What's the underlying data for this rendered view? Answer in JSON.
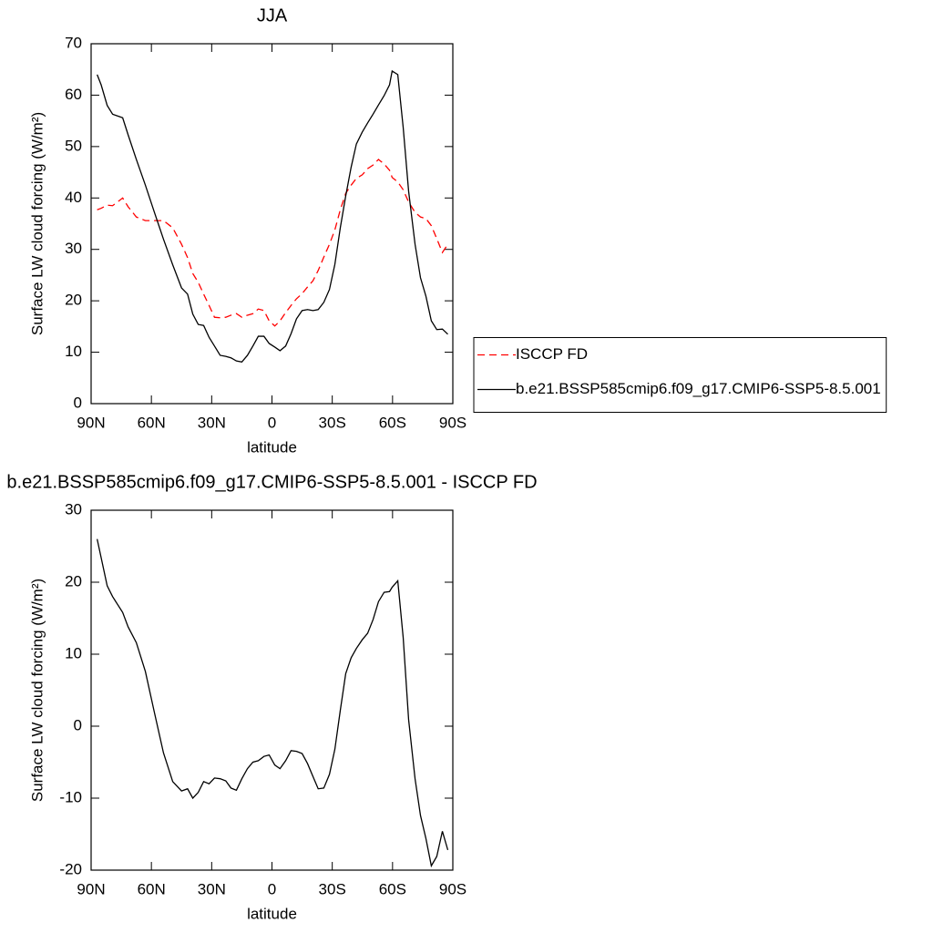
{
  "chart_data": [
    {
      "type": "line",
      "title": "JJA",
      "x_label": "latitude",
      "y_label": "Surface LW cloud forcing (W/m²)",
      "x": [
        87,
        85,
        82,
        79.3,
        74.3,
        71.6,
        67.5,
        63,
        58.5,
        54,
        49.4,
        45,
        42,
        39.4,
        36.7,
        34,
        31.3,
        28.6,
        25.8,
        23,
        20.4,
        17.7,
        15,
        12.2,
        9.5,
        6.8,
        4,
        1.4,
        -1.4,
        -4,
        -6.8,
        -9.5,
        -12.2,
        -15,
        -17.7,
        -20.4,
        -23,
        -25.8,
        -28.6,
        -31.3,
        -34,
        -36.7,
        -39.4,
        -42,
        -44.9,
        -47.6,
        -50.3,
        -53,
        -55.8,
        -58.5,
        -59.8,
        -62.6,
        -65.3,
        -68,
        -71.2,
        -73.9,
        -76.6,
        -79.3,
        -82,
        -84.8,
        -87.5
      ],
      "series": [
        {
          "name": "ISCCP FD",
          "color": "#ff0000",
          "dash": "dashed",
          "values": [
            37.7,
            38,
            38.6,
            38.5,
            40,
            38.3,
            36.3,
            35.6,
            35.6,
            35.6,
            34.2,
            31,
            28.4,
            25.3,
            23.6,
            21.3,
            19.1,
            16.8,
            16.7,
            16.8,
            17.2,
            17.5,
            16.8,
            17.2,
            17.5,
            18.4,
            18.1,
            16.1,
            15.1,
            16.1,
            17.7,
            19.1,
            20.4,
            21.4,
            22.7,
            23.9,
            25.9,
            28.5,
            31,
            33.8,
            37.7,
            40.9,
            42.5,
            43.8,
            44.5,
            45.7,
            46.4,
            47.5,
            46.6,
            45.4,
            44,
            43.1,
            41.6,
            39.2,
            37.2,
            36.3,
            36,
            34.6,
            32.1,
            29.4,
            31
          ]
        },
        {
          "name": "b.e21.BSSP585cmip6.f09_g17.CMIP6-SSP5-8.5.001",
          "color": "#000000",
          "dash": "solid",
          "values": [
            64,
            62,
            58,
            56.3,
            55.6,
            52.3,
            47.5,
            42.5,
            37.2,
            32,
            27,
            22.5,
            21.3,
            17.4,
            15.4,
            15.2,
            12.9,
            11.2,
            9.4,
            9.2,
            8.9,
            8.3,
            8.1,
            9.4,
            11.2,
            13.1,
            13.1,
            11.7,
            11,
            10.3,
            11.2,
            13.6,
            16.5,
            18.1,
            18.3,
            18.1,
            18.3,
            19.7,
            22.2,
            27.1,
            34.2,
            40.4,
            46,
            50.5,
            52.8,
            54.6,
            56.3,
            58.1,
            59.9,
            62,
            64.7,
            64,
            53.7,
            41.3,
            31,
            24.5,
            20.9,
            16.1,
            14.4,
            14.5,
            13.5
          ]
        }
      ],
      "xlim": [
        90,
        -90
      ],
      "xticks": [
        {
          "value": 90,
          "label": "90N"
        },
        {
          "value": 60,
          "label": "60N"
        },
        {
          "value": 30,
          "label": "30N"
        },
        0,
        {
          "value": -30,
          "label": "30S"
        },
        {
          "value": -60,
          "label": "60S"
        },
        {
          "value": -90,
          "label": "90S"
        }
      ],
      "ylim": [
        0,
        70
      ],
      "yticks": [
        0,
        10,
        20,
        30,
        40,
        50,
        60,
        70
      ],
      "legend_position": "right"
    },
    {
      "type": "line",
      "title": "b.e21.BSSP585cmip6.f09_g17.CMIP6-SSP5-8.5.001 - ISCCP FD",
      "x_label": "latitude",
      "y_label": "Surface LW cloud forcing (W/m²)",
      "x": [
        87,
        85,
        82,
        79.3,
        74.3,
        71.6,
        67.5,
        63,
        58.5,
        54,
        49.4,
        45,
        42,
        39.4,
        36.7,
        34,
        31.3,
        28.6,
        25.8,
        23,
        20.4,
        17.7,
        15,
        12.2,
        9.5,
        6.8,
        4,
        1.4,
        -1.4,
        -4,
        -6.8,
        -9.5,
        -12.2,
        -15,
        -17.7,
        -20.4,
        -23,
        -25.8,
        -28.6,
        -31.3,
        -34,
        -36.7,
        -39.4,
        -42,
        -44.9,
        -47.6,
        -50.3,
        -53,
        -55.8,
        -58.5,
        -59.8,
        -62.6,
        -65.3,
        -68,
        -71.2,
        -73.9,
        -76.6,
        -79.3,
        -82,
        -84.8,
        -87.5
      ],
      "series": [
        {
          "color": "#000000",
          "dash": "solid",
          "values": [
            26,
            23.4,
            19.5,
            18,
            15.8,
            13.8,
            11.6,
            7.6,
            1.9,
            -3.7,
            -7.7,
            -9,
            -8.7,
            -10,
            -9.2,
            -7.7,
            -8,
            -7.2,
            -7.3,
            -7.6,
            -8.6,
            -8.9,
            -7.3,
            -5.9,
            -5,
            -4.8,
            -4.2,
            -4,
            -5.4,
            -5.9,
            -4.8,
            -3.4,
            -3.5,
            -3.8,
            -5.2,
            -7,
            -8.7,
            -8.6,
            -6.7,
            -3.2,
            2.2,
            7.3,
            9.5,
            10.8,
            12,
            12.9,
            14.8,
            17.3,
            18.6,
            18.7,
            19.3,
            20.2,
            12.3,
            0.9,
            -7.3,
            -12.4,
            -15.6,
            -19.4,
            -18.1,
            -14.6,
            -17.2
          ]
        }
      ],
      "xlim": [
        90,
        -90
      ],
      "xticks": [
        {
          "value": 90,
          "label": "90N"
        },
        {
          "value": 60,
          "label": "60N"
        },
        {
          "value": 30,
          "label": "30N"
        },
        0,
        {
          "value": -30,
          "label": "30S"
        },
        {
          "value": -60,
          "label": "60S"
        },
        {
          "value": -90,
          "label": "90S"
        }
      ],
      "ylim": [
        -20,
        30
      ],
      "yticks": [
        -20,
        -10,
        0,
        10,
        20,
        30
      ]
    }
  ]
}
